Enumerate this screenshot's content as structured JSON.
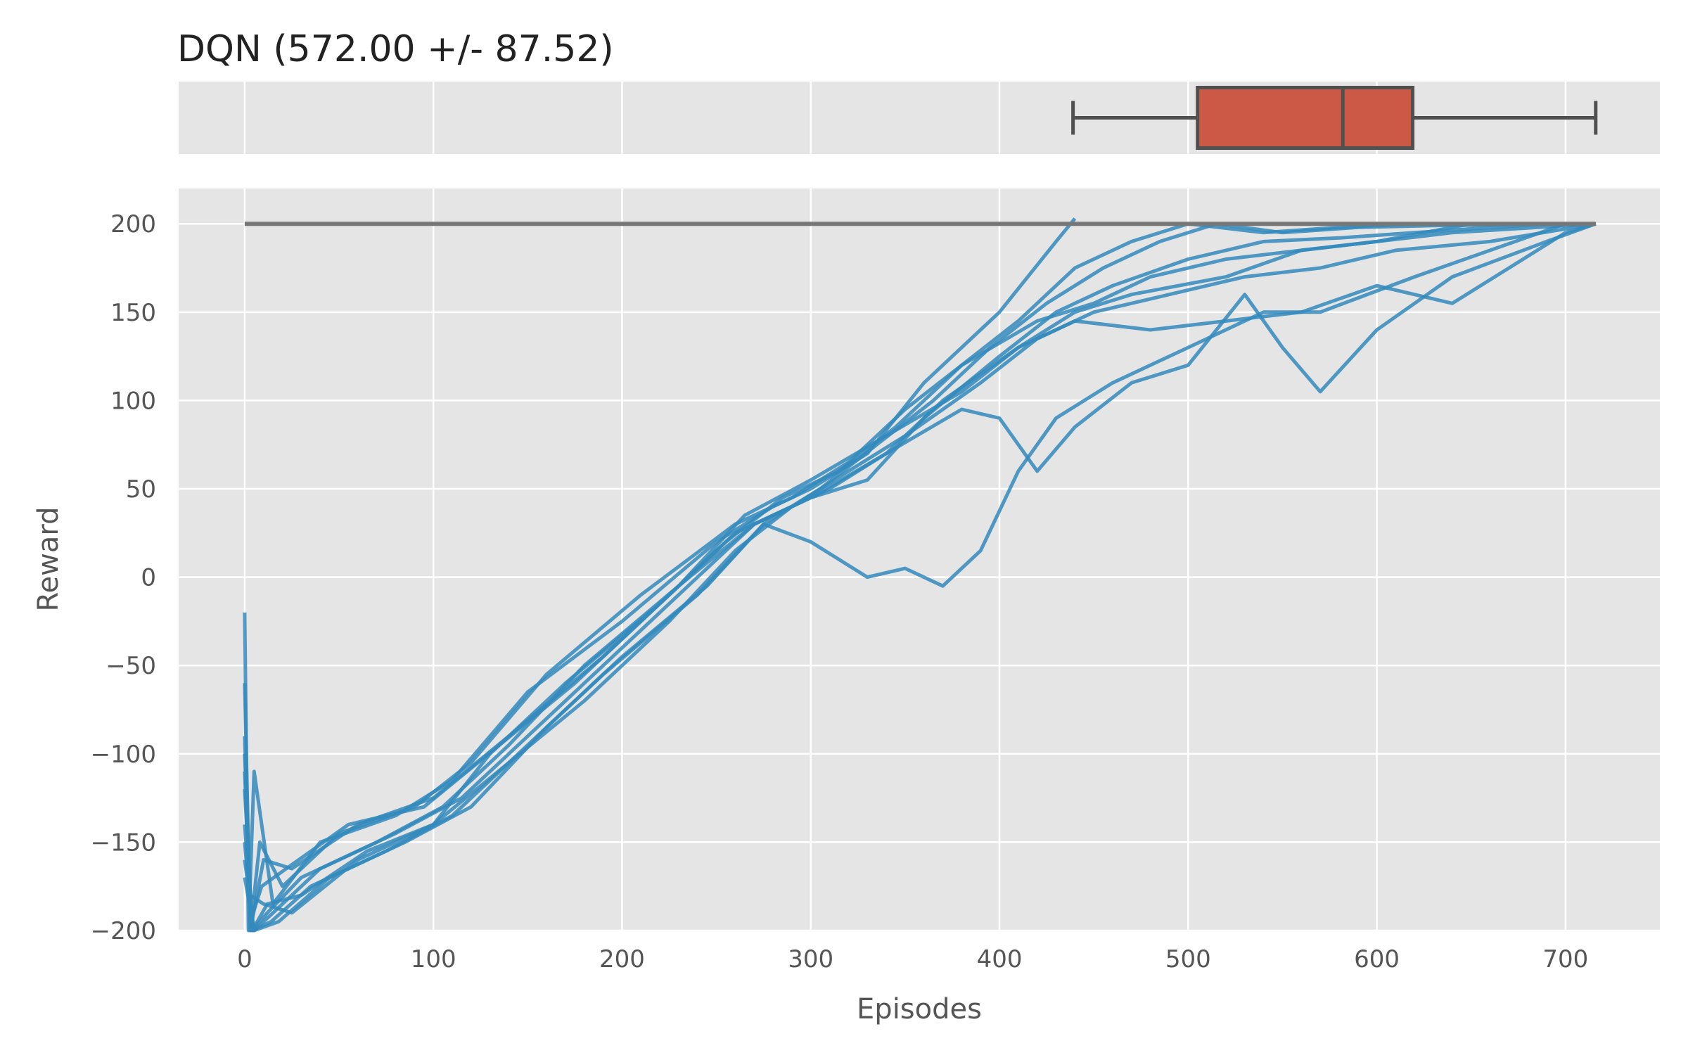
{
  "chart_data": {
    "type": "line",
    "title": "DQN (572.00 +/- 87.52)",
    "xlabel": "Episodes",
    "ylabel": "Reward",
    "xlim": [
      -35,
      750
    ],
    "ylim": [
      -200,
      220
    ],
    "xticks": [
      0,
      100,
      200,
      300,
      400,
      500,
      600,
      700
    ],
    "yticks": [
      -200,
      -150,
      -100,
      -50,
      0,
      50,
      100,
      150,
      200
    ],
    "xtick_labels": [
      "0",
      "100",
      "200",
      "300",
      "400",
      "500",
      "600",
      "700"
    ],
    "ytick_labels": [
      "−200",
      "−150",
      "−100",
      "−50",
      "0",
      "50",
      "100",
      "150",
      "200"
    ],
    "grid": true,
    "colors": {
      "series": "#348abd",
      "box": "#cc5945",
      "target": "#777777",
      "panel": "#e5e5e5"
    },
    "target_line": {
      "y": 200,
      "x": [
        0,
        716
      ]
    },
    "boxplot": {
      "orientation": "horizontal",
      "whisker_low": 439,
      "q1": 505,
      "median": 582,
      "q3": 619,
      "whisker_high": 716
    },
    "series": [
      {
        "x": [
          0,
          2,
          5,
          15,
          40,
          80,
          110,
          150,
          200,
          250,
          280,
          300,
          330,
          360,
          400,
          430,
          440
        ],
        "y": [
          -20,
          -200,
          -110,
          -185,
          -150,
          -135,
          -115,
          -65,
          -25,
          20,
          40,
          50,
          70,
          110,
          150,
          190,
          203
        ]
      },
      {
        "x": [
          0,
          3,
          8,
          20,
          50,
          90,
          120,
          160,
          210,
          260,
          290,
          320,
          350,
          380,
          410,
          440,
          470,
          500,
          540,
          580,
          622
        ],
        "y": [
          -60,
          -200,
          -150,
          -175,
          -145,
          -130,
          -105,
          -55,
          -10,
          30,
          45,
          65,
          95,
          120,
          145,
          175,
          190,
          200,
          195,
          198,
          200
        ]
      },
      {
        "x": [
          0,
          3,
          10,
          25,
          60,
          100,
          130,
          170,
          220,
          260,
          300,
          330,
          360,
          400,
          430,
          460,
          500,
          540,
          580,
          620,
          690
        ],
        "y": [
          -100,
          -180,
          -185,
          -190,
          -160,
          -140,
          -100,
          -60,
          -15,
          25,
          45,
          55,
          90,
          125,
          150,
          165,
          180,
          190,
          192,
          195,
          200
        ]
      },
      {
        "x": [
          0,
          4,
          12,
          30,
          70,
          105,
          140,
          180,
          230,
          270,
          310,
          340,
          370,
          410,
          440,
          470,
          520,
          560,
          600,
          650
        ],
        "y": [
          -150,
          -200,
          -190,
          -170,
          -150,
          -130,
          -95,
          -50,
          -5,
          30,
          50,
          70,
          100,
          130,
          150,
          160,
          170,
          185,
          190,
          200
        ]
      },
      {
        "x": [
          0,
          4,
          14,
          35,
          75,
          110,
          150,
          190,
          240,
          275,
          300,
          330,
          350,
          370,
          390,
          410,
          430,
          460,
          500,
          540,
          570,
          620,
          700
        ],
        "y": [
          -120,
          -200,
          -195,
          -175,
          -155,
          -135,
          -95,
          -55,
          -10,
          30,
          20,
          0,
          5,
          -5,
          15,
          60,
          90,
          110,
          130,
          150,
          150,
          170,
          200
        ]
      },
      {
        "x": [
          0,
          5,
          15,
          40,
          80,
          115,
          150,
          200,
          240,
          270,
          300,
          340,
          380,
          400,
          420,
          440,
          470,
          500,
          530,
          550,
          570,
          600,
          640,
          690,
          716
        ],
        "y": [
          -170,
          -200,
          -190,
          -165,
          -145,
          -125,
          -90,
          -40,
          0,
          30,
          45,
          70,
          95,
          90,
          60,
          85,
          110,
          120,
          160,
          130,
          105,
          140,
          170,
          190,
          200
        ]
      },
      {
        "x": [
          0,
          3,
          10,
          25,
          60,
          100,
          140,
          190,
          230,
          265,
          300,
          340,
          380,
          410,
          440,
          480,
          520,
          560,
          600,
          640,
          700,
          716
        ],
        "y": [
          -90,
          -200,
          -160,
          -165,
          -140,
          -125,
          -90,
          -45,
          -5,
          35,
          55,
          80,
          105,
          130,
          145,
          140,
          145,
          150,
          165,
          155,
          195,
          200
        ]
      },
      {
        "x": [
          0,
          4,
          12,
          30,
          65,
          100,
          140,
          180,
          225,
          260,
          290,
          320,
          350,
          390,
          420,
          450,
          490,
          530,
          570,
          610,
          660,
          716
        ],
        "y": [
          -140,
          -200,
          -185,
          -180,
          -155,
          -140,
          -105,
          -70,
          -25,
          15,
          40,
          60,
          80,
          110,
          135,
          150,
          160,
          170,
          175,
          185,
          190,
          200
        ]
      },
      {
        "x": [
          0,
          3,
          9,
          22,
          55,
          95,
          135,
          175,
          220,
          255,
          285,
          315,
          345,
          380,
          420,
          450,
          480,
          520,
          560,
          600,
          640,
          716
        ],
        "y": [
          -110,
          -195,
          -175,
          -165,
          -140,
          -130,
          -95,
          -60,
          -15,
          20,
          45,
          60,
          85,
          120,
          145,
          155,
          170,
          180,
          185,
          190,
          195,
          200
        ]
      },
      {
        "x": [
          0,
          5,
          18,
          45,
          85,
          120,
          160,
          200,
          245,
          275,
          305,
          335,
          365,
          395,
          425,
          455,
          485,
          515,
          550,
          590,
          630,
          716
        ],
        "y": [
          -160,
          -200,
          -195,
          -170,
          -150,
          -130,
          -85,
          -45,
          -5,
          30,
          50,
          75,
          100,
          130,
          155,
          175,
          190,
          200,
          195,
          198,
          199,
          200
        ]
      }
    ]
  }
}
